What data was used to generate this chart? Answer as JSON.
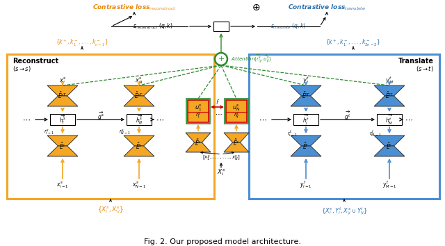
{
  "title": "Fig. 2. Our proposed model architecture.",
  "orange": "#F5A623",
  "blue": "#4A8FD4",
  "green": "#2d8a2d",
  "red": "#cc0000",
  "text_orange": "#E8890C",
  "text_blue": "#2c6fad",
  "text_green": "#2d8a2d",
  "bg": "#ffffff",
  "fig_w": 6.4,
  "fig_h": 3.54,
  "dpi": 100
}
